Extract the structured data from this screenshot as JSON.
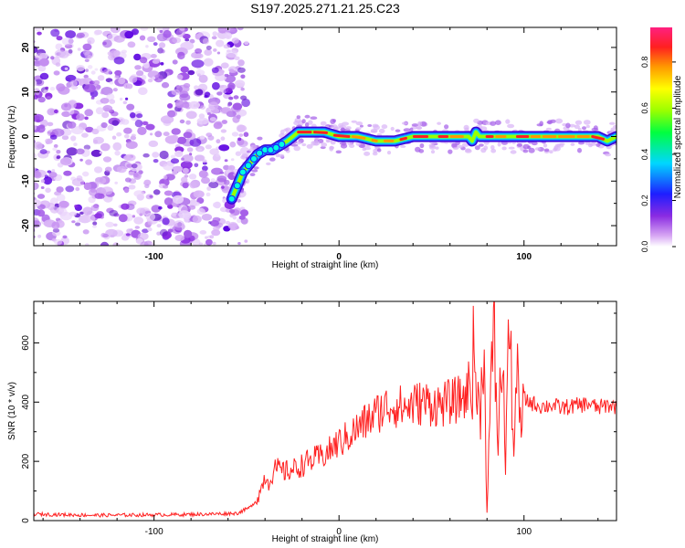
{
  "figure_title": "S197.2025.271.21.25.C23",
  "chart_data": [
    {
      "type": "heatmap",
      "title": "S197.2025.271.21.25.C23",
      "xlabel": "Height of straight line (km)",
      "ylabel": "Frequency (Hz)",
      "xlim": [
        -165,
        150
      ],
      "ylim": [
        -24.5,
        24.5
      ],
      "xticks": [
        -100,
        0,
        100
      ],
      "yticks": [
        -20,
        -10,
        0,
        10,
        20
      ],
      "noise_region_x": [
        -165,
        -53
      ],
      "ridge": {
        "x": [
          -58,
          -55,
          -52,
          -48,
          -44,
          -40,
          -36,
          -32,
          -28,
          -25,
          -22,
          -18,
          -12,
          -8,
          0,
          10,
          20,
          25,
          30,
          40,
          50,
          60,
          65,
          70,
          72,
          74,
          76,
          80,
          90,
          100,
          110,
          120,
          130,
          140,
          145,
          150
        ],
        "y": [
          -14,
          -11,
          -8,
          -6,
          -4,
          -3,
          -3,
          -2,
          -1,
          0,
          1,
          1,
          1,
          1,
          0,
          0,
          -1,
          -1,
          -1,
          0,
          0,
          0,
          0,
          0,
          -1,
          1,
          0,
          0,
          0,
          0,
          0,
          0,
          0,
          0,
          -1,
          0
        ]
      },
      "colorbar": {
        "label": "Normalized spectral amplitude",
        "min": 0.0,
        "max": 0.95,
        "ticks": [
          "0.0",
          "0.2",
          "0.4",
          "0.6",
          "0.8"
        ],
        "colors": [
          "#ffffff",
          "#d7a6f3",
          "#8a2be2",
          "#1e1eff",
          "#00d7ff",
          "#00ff40",
          "#9aff00",
          "#ffff00",
          "#ff9900",
          "#ff2020",
          "#ff2080"
        ]
      }
    },
    {
      "type": "line",
      "xlabel": "Height of straight line (km)",
      "ylabel": "SNR (10 * v/v)",
      "xlim": [
        -165,
        150
      ],
      "ylim": [
        0,
        740
      ],
      "xticks": [
        -100,
        0,
        100
      ],
      "yticks": [
        0,
        200,
        400,
        600
      ],
      "series": [
        {
          "name": "SNR",
          "color": "#ff2020",
          "x": [
            -165,
            -150,
            -130,
            -110,
            -90,
            -70,
            -55,
            -48,
            -44,
            -42,
            -40,
            -38,
            -36,
            -34,
            -30,
            -26,
            -22,
            -18,
            -14,
            -10,
            -6,
            -2,
            2,
            6,
            10,
            14,
            18,
            22,
            26,
            30,
            35,
            40,
            45,
            50,
            55,
            60,
            65,
            70,
            73,
            76,
            78,
            80,
            82,
            84,
            86,
            88,
            90,
            92,
            94,
            96,
            98,
            100,
            105,
            110,
            115,
            120,
            125,
            130,
            135,
            140,
            145,
            150
          ],
          "values": [
            22,
            20,
            18,
            19,
            20,
            22,
            25,
            45,
            75,
            110,
            150,
            130,
            160,
            175,
            165,
            170,
            180,
            195,
            205,
            215,
            230,
            255,
            270,
            290,
            310,
            330,
            350,
            370,
            385,
            390,
            380,
            390,
            400,
            395,
            390,
            400,
            410,
            430,
            560,
            330,
            640,
            40,
            430,
            600,
            260,
            560,
            220,
            700,
            250,
            500,
            300,
            410,
            395,
            385,
            390,
            380,
            385,
            390,
            395,
            380,
            390,
            385
          ]
        }
      ]
    }
  ]
}
